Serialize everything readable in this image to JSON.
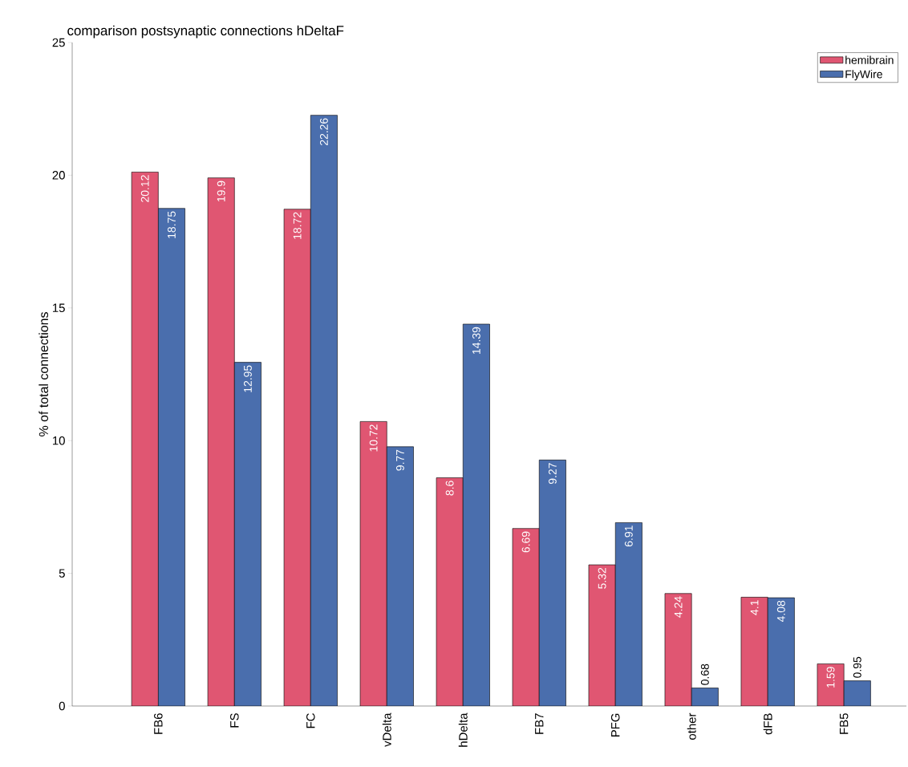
{
  "chart_data": {
    "type": "bar",
    "title": "comparison postsynaptic connections hDeltaF",
    "ylabel": "% of total connections",
    "categories": [
      "FB6",
      "FS",
      "FC",
      "vDelta",
      "hDelta",
      "FB7",
      "PFG",
      "other",
      "dFB",
      "FB5"
    ],
    "series": [
      {
        "name": "hemibrain",
        "color": "#e05672",
        "values": [
          20.12,
          19.9,
          18.72,
          10.72,
          8.6,
          6.69,
          5.32,
          4.24,
          4.1,
          1.59
        ]
      },
      {
        "name": "FlyWire",
        "color": "#4a6ead",
        "values": [
          18.75,
          12.95,
          22.26,
          9.77,
          14.39,
          9.27,
          6.91,
          0.68,
          4.08,
          0.95
        ]
      }
    ],
    "ylim": [
      0,
      25
    ],
    "yticks": [
      0,
      5,
      10,
      15,
      20,
      25
    ],
    "legend": "top right",
    "data_labels": true
  }
}
